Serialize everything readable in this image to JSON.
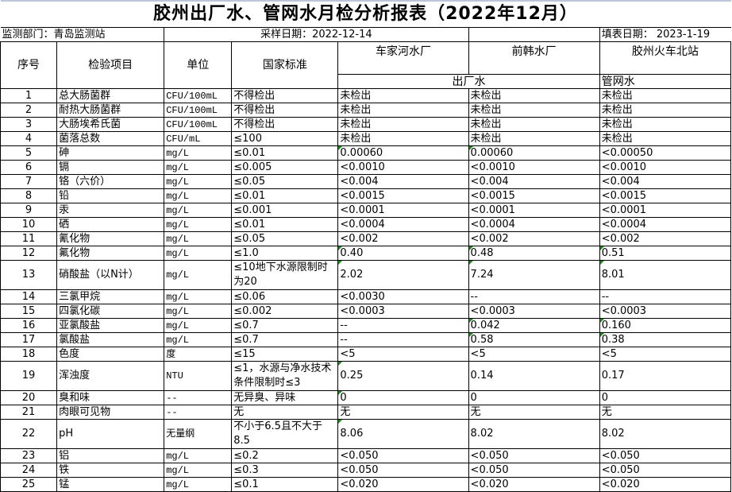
{
  "title": "胶州出厂水、管网水月检分析报表（2022年12月）",
  "info": {
    "department": "监测部门：青岛监测站",
    "sample_date": "采样日期：2022-12-14",
    "fill_date": "填表日期： 2023-1-19"
  },
  "headers": {
    "seq": "序号",
    "item": "检验项目",
    "unit": "单位",
    "standard": "国家标准",
    "sites": [
      "车家河水厂",
      "前韩水厂",
      "胶州火车北站"
    ],
    "outlet_water": "出厂水",
    "network_water": "管网水"
  },
  "marker_color": "#1a8a1a",
  "rows": [
    {
      "seq": "1",
      "item": "总大肠菌群",
      "unit": "CFU/100mL",
      "standard": "不得检出",
      "values": [
        "未检出",
        "未检出",
        "未检出"
      ],
      "marked": [
        false,
        false,
        false
      ]
    },
    {
      "seq": "2",
      "item": "耐热大肠菌群",
      "unit": "CFU/100mL",
      "standard": "不得检出",
      "values": [
        "未检出",
        "未检出",
        "未检出"
      ],
      "marked": [
        false,
        false,
        false
      ]
    },
    {
      "seq": "3",
      "item": "大肠埃希氏菌",
      "unit": "CFU/100mL",
      "standard": "不得检出",
      "values": [
        "未检出",
        "未检出",
        "未检出"
      ],
      "marked": [
        false,
        false,
        false
      ]
    },
    {
      "seq": "4",
      "item": "菌落总数",
      "unit": "CFU/mL",
      "standard": "≤100",
      "values": [
        "未检出",
        "未检出",
        "未检出"
      ],
      "marked": [
        false,
        false,
        false
      ]
    },
    {
      "seq": "5",
      "item": "砷",
      "unit": "mg/L",
      "standard": "≤0.01",
      "values": [
        "0.00060",
        "0.00060",
        "<0.00050"
      ],
      "marked": [
        true,
        true,
        false
      ]
    },
    {
      "seq": "6",
      "item": "镉",
      "unit": "mg/L",
      "standard": "≤0.005",
      "values": [
        "<0.0010",
        "<0.0010",
        "<0.0010"
      ],
      "marked": [
        false,
        false,
        false
      ]
    },
    {
      "seq": "7",
      "item": "铬（六价）",
      "unit": "mg/L",
      "standard": "≤0.05",
      "values": [
        "<0.004",
        "<0.004",
        "<0.004"
      ],
      "marked": [
        false,
        false,
        false
      ]
    },
    {
      "seq": "8",
      "item": "铅",
      "unit": "mg/L",
      "standard": "≤0.01",
      "values": [
        "<0.0015",
        "<0.0015",
        "<0.0015"
      ],
      "marked": [
        false,
        false,
        false
      ]
    },
    {
      "seq": "9",
      "item": "汞",
      "unit": "mg/L",
      "standard": "≤0.001",
      "values": [
        "<0.0001",
        "<0.0001",
        "<0.0001"
      ],
      "marked": [
        false,
        false,
        false
      ]
    },
    {
      "seq": "10",
      "item": "硒",
      "unit": "mg/L",
      "standard": "≤0.01",
      "values": [
        "<0.0004",
        "<0.0004",
        "<0.0004"
      ],
      "marked": [
        false,
        false,
        false
      ]
    },
    {
      "seq": "11",
      "item": "氰化物",
      "unit": "mg/L",
      "standard": "≤0.05",
      "values": [
        "<0.002",
        "<0.002",
        "<0.002"
      ],
      "marked": [
        false,
        false,
        false
      ]
    },
    {
      "seq": "12",
      "item": "氟化物",
      "unit": "mg/L",
      "standard": "≤1.0",
      "values": [
        "0.40",
        "0.48",
        "0.51"
      ],
      "marked": [
        true,
        true,
        true
      ]
    },
    {
      "seq": "13",
      "item": "硝酸盐（以N计）",
      "unit": "mg/L",
      "standard": "≤10地下水源限制时为20",
      "values": [
        "2.02",
        "7.24",
        "8.01"
      ],
      "marked": [
        true,
        true,
        true
      ],
      "tall": true
    },
    {
      "seq": "14",
      "item": "三氯甲烷",
      "unit": "mg/L",
      "standard": "≤0.06",
      "values": [
        "<0.0030",
        "--",
        "--"
      ],
      "marked": [
        false,
        false,
        false
      ]
    },
    {
      "seq": "15",
      "item": "四氯化碳",
      "unit": "mg/L",
      "standard": "≤0.002",
      "values": [
        "<0.0003",
        "<0.0003",
        "<0.0003"
      ],
      "marked": [
        false,
        false,
        false
      ]
    },
    {
      "seq": "16",
      "item": "亚氯酸盐",
      "unit": "mg/L",
      "standard": "≤0.7",
      "values": [
        "--",
        "0.042",
        "0.160"
      ],
      "marked": [
        false,
        true,
        true
      ]
    },
    {
      "seq": "17",
      "item": "氯酸盐",
      "unit": "mg/L",
      "standard": "≤0.7",
      "values": [
        "--",
        "0.58",
        "0.38"
      ],
      "marked": [
        false,
        true,
        true
      ]
    },
    {
      "seq": "18",
      "item": "色度",
      "unit": "度",
      "standard": "≤15",
      "values": [
        "<5",
        "<5",
        "<5"
      ],
      "marked": [
        false,
        false,
        false
      ]
    },
    {
      "seq": "19",
      "item": "浑浊度",
      "unit": "NTU",
      "standard": "≤1，水源与净水技术条件限制时≤3",
      "values": [
        "0.25",
        "0.14",
        "0.17"
      ],
      "marked": [
        true,
        false,
        false
      ],
      "tall": true
    },
    {
      "seq": "20",
      "item": "臭和味",
      "unit": "--",
      "standard": "无异臭、异味",
      "values": [
        "0",
        "0",
        "0"
      ],
      "marked": [
        true,
        false,
        false
      ]
    },
    {
      "seq": "21",
      "item": "肉眼可见物",
      "unit": "--",
      "standard": "无",
      "values": [
        "无",
        "无",
        "无"
      ],
      "marked": [
        false,
        false,
        false
      ]
    },
    {
      "seq": "22",
      "item": "pH",
      "unit": "无量纲",
      "standard": "不小于6.5且不大于8.5",
      "values": [
        "8.06",
        "8.02",
        "8.02"
      ],
      "marked": [
        true,
        false,
        false
      ],
      "tall": true
    },
    {
      "seq": "23",
      "item": "铝",
      "unit": "mg/L",
      "standard": "≤0.2",
      "values": [
        "<0.050",
        "<0.050",
        "<0.050"
      ],
      "marked": [
        false,
        false,
        false
      ]
    },
    {
      "seq": "24",
      "item": "铁",
      "unit": "mg/L",
      "standard": "≤0.3",
      "values": [
        "<0.050",
        "<0.050",
        "<0.050"
      ],
      "marked": [
        false,
        false,
        false
      ]
    },
    {
      "seq": "25",
      "item": "锰",
      "unit": "mg/L",
      "standard": "≤0.1",
      "values": [
        "<0.020",
        "<0.020",
        "<0.020"
      ],
      "marked": [
        false,
        false,
        false
      ]
    }
  ]
}
